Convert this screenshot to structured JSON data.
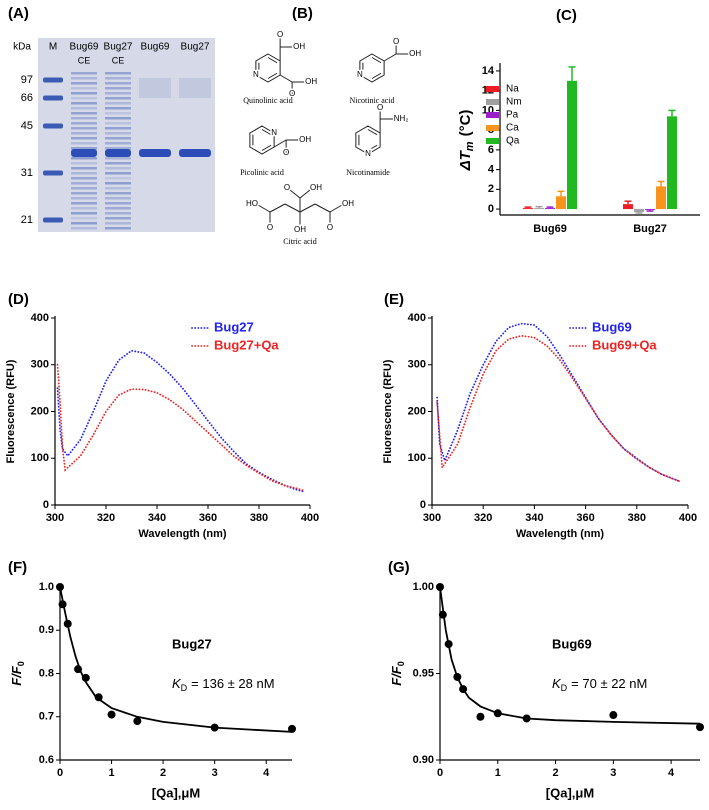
{
  "gel": {
    "panel": "(A)",
    "unit": "kDa",
    "lanes": [
      {
        "label": "M"
      },
      {
        "label": "Bug69",
        "sublabel": "CE"
      },
      {
        "label": "Bug27",
        "sublabel": "CE"
      },
      {
        "label": "Bug69"
      },
      {
        "label": "Bug27"
      }
    ],
    "markers": [
      "97",
      "66",
      "45",
      "31",
      "21"
    ]
  },
  "structures": {
    "panel": "(B)",
    "molecules": [
      {
        "name": "Quinolinic acid",
        "atoms": [
          "N",
          "O",
          "OH",
          "OH",
          "O"
        ]
      },
      {
        "name": "Nicotinic acid",
        "atoms": [
          "N",
          "O",
          "OH"
        ]
      },
      {
        "name": "Picolinic acid",
        "atoms": [
          "N",
          "O",
          "OH"
        ]
      },
      {
        "name": "Nicotinamide",
        "atoms": [
          "N",
          "O",
          "NH₂"
        ]
      },
      {
        "name": "Citric acid",
        "atoms": [
          "O",
          "OH",
          "HO",
          "O",
          "O",
          "OH",
          "OH"
        ]
      }
    ]
  },
  "chart_data": [
    {
      "panel": "(C)",
      "type": "bar",
      "categories": [
        "Bug69",
        "Bug27"
      ],
      "series": [
        {
          "name": "Na",
          "color": "#ee1c25",
          "values": [
            0.1,
            0.5
          ],
          "errors": [
            0.1,
            0.3
          ]
        },
        {
          "name": "Nm",
          "color": "#a0a0a0",
          "values": [
            0.1,
            -0.3
          ],
          "errors": [
            0.15,
            0.1
          ]
        },
        {
          "name": "Pa",
          "color": "#9b1fc8",
          "values": [
            0.1,
            -0.1
          ],
          "errors": [
            0.1,
            0.1
          ]
        },
        {
          "name": "Ca",
          "color": "#f7941d",
          "values": [
            1.3,
            2.3
          ],
          "errors": [
            0.5,
            0.5
          ]
        },
        {
          "name": "Qa",
          "color": "#22b822",
          "values": [
            13,
            9.4
          ],
          "errors": [
            1.4,
            0.6
          ]
        }
      ],
      "ylim": [
        -0.6,
        14.6
      ],
      "yticks": [
        0,
        2,
        4,
        6,
        8,
        10,
        12,
        14
      ],
      "y_label": "ΔT",
      "y_label_subscript": "m",
      "y_label_unit": "(°C)",
      "legend": "upper left"
    },
    {
      "panel": "(D)",
      "type": "line",
      "x_label": "Wavelength (nm)",
      "y_label": "Fluorescence (RFU)",
      "xlim": [
        300,
        400
      ],
      "xticks": [
        300,
        320,
        340,
        360,
        380,
        400
      ],
      "ylim": [
        0,
        400
      ],
      "yticks": [
        0,
        100,
        200,
        300,
        400
      ],
      "legend": "upper right",
      "series": [
        {
          "name": "Bug27",
          "color": "#2323f0",
          "x": [
            301,
            302,
            303,
            305,
            310,
            315,
            320,
            325,
            330,
            335,
            340,
            345,
            350,
            355,
            360,
            365,
            370,
            375,
            380,
            385,
            390,
            395,
            398
          ],
          "values": [
            250,
            160,
            120,
            105,
            140,
            200,
            265,
            310,
            330,
            325,
            305,
            280,
            250,
            215,
            180,
            145,
            115,
            88,
            70,
            55,
            42,
            32,
            28
          ]
        },
        {
          "name": "Bug27+Qa",
          "color": "#f02323",
          "x": [
            301,
            302,
            303,
            304,
            310,
            315,
            320,
            325,
            330,
            335,
            340,
            345,
            350,
            355,
            360,
            365,
            370,
            375,
            380,
            385,
            390,
            395,
            398
          ],
          "values": [
            300,
            220,
            120,
            75,
            105,
            150,
            200,
            235,
            248,
            247,
            240,
            225,
            205,
            180,
            155,
            130,
            105,
            85,
            68,
            52,
            42,
            35,
            30
          ]
        }
      ]
    },
    {
      "panel": "(E)",
      "type": "line",
      "x_label": "Wavelength (nm)",
      "y_label": "Fluorescence (RFU)",
      "xlim": [
        300,
        400
      ],
      "xticks": [
        300,
        320,
        340,
        360,
        380,
        400
      ],
      "ylim": [
        0,
        400
      ],
      "yticks": [
        0,
        100,
        200,
        300,
        400
      ],
      "legend": "upper right",
      "series": [
        {
          "name": "Bug69",
          "color": "#2323f0",
          "x": [
            302,
            303,
            305,
            310,
            315,
            320,
            325,
            330,
            335,
            340,
            345,
            350,
            355,
            360,
            365,
            370,
            375,
            380,
            385,
            390,
            397
          ],
          "values": [
            230,
            130,
            95,
            160,
            240,
            300,
            350,
            380,
            388,
            385,
            360,
            320,
            275,
            230,
            185,
            150,
            120,
            100,
            80,
            65,
            50
          ]
        },
        {
          "name": "Bug69+Qa",
          "color": "#f02323",
          "x": [
            302,
            304,
            310,
            315,
            320,
            325,
            330,
            335,
            340,
            345,
            350,
            355,
            360,
            365,
            370,
            375,
            380,
            385,
            390,
            397
          ],
          "values": [
            220,
            80,
            130,
            210,
            280,
            330,
            355,
            362,
            358,
            340,
            310,
            270,
            228,
            185,
            150,
            120,
            98,
            80,
            65,
            50
          ]
        }
      ]
    },
    {
      "panel": "(F)",
      "type": "scatter",
      "x_label": "[Qa],μM",
      "y_label": "F/F",
      "y_label_subscript": "0",
      "xlim": [
        0,
        4.5
      ],
      "xticks": [
        0,
        1,
        2,
        3,
        4
      ],
      "ylim": [
        0.6,
        1.0
      ],
      "yticks": [
        0.6,
        0.7,
        0.8,
        0.9,
        {
          "value": 1,
          "label": "1.0"
        }
      ],
      "annotation": {
        "title": "Bug27",
        "symbol": "K",
        "subscript": "D",
        "text": "= 136 ± 28 nM"
      },
      "series": [
        {
          "color": "#000000",
          "x": [
            0,
            0.05,
            0.15,
            0.35,
            0.5,
            0.75,
            1.0,
            1.5,
            3.0,
            4.5
          ],
          "values": [
            1.0,
            0.96,
            0.915,
            0.81,
            0.79,
            0.745,
            0.705,
            0.69,
            0.675,
            0.672
          ]
        }
      ],
      "fit": {
        "color": "#000000",
        "x": [
          0,
          0.1,
          0.2,
          0.3,
          0.4,
          0.5,
          0.7,
          1.0,
          1.5,
          2,
          3,
          4.5
        ],
        "values": [
          1.0,
          0.94,
          0.885,
          0.84,
          0.805,
          0.78,
          0.745,
          0.72,
          0.7,
          0.688,
          0.675,
          0.665
        ]
      }
    },
    {
      "panel": "(G)",
      "type": "scatter",
      "x_label": "[Qa],μM",
      "y_label": "F/F",
      "y_label_subscript": "0",
      "xlim": [
        0,
        4.5
      ],
      "xticks": [
        0,
        1,
        2,
        3,
        4
      ],
      "ylim": [
        0.9,
        1.0
      ],
      "yticks": [
        {
          "value": 0.9,
          "label": "0.90"
        },
        0.95,
        {
          "value": 1,
          "label": "1.00"
        }
      ],
      "annotation": {
        "title": "Bug69",
        "symbol": "K",
        "subscript": "D",
        "text": "= 70 ± 22 nM"
      },
      "series": [
        {
          "color": "#000000",
          "x": [
            0,
            0.05,
            0.15,
            0.3,
            0.4,
            0.7,
            1.0,
            1.5,
            3.0,
            4.5
          ],
          "values": [
            1.0,
            0.984,
            0.967,
            0.948,
            0.941,
            0.925,
            0.927,
            0.924,
            0.926,
            0.919
          ]
        }
      ],
      "fit": {
        "color": "#000000",
        "x": [
          0,
          0.1,
          0.2,
          0.3,
          0.4,
          0.5,
          0.7,
          1.0,
          1.5,
          2,
          3,
          4.5
        ],
        "values": [
          1.0,
          0.975,
          0.958,
          0.948,
          0.941,
          0.936,
          0.931,
          0.927,
          0.924,
          0.923,
          0.922,
          0.921
        ]
      }
    }
  ]
}
